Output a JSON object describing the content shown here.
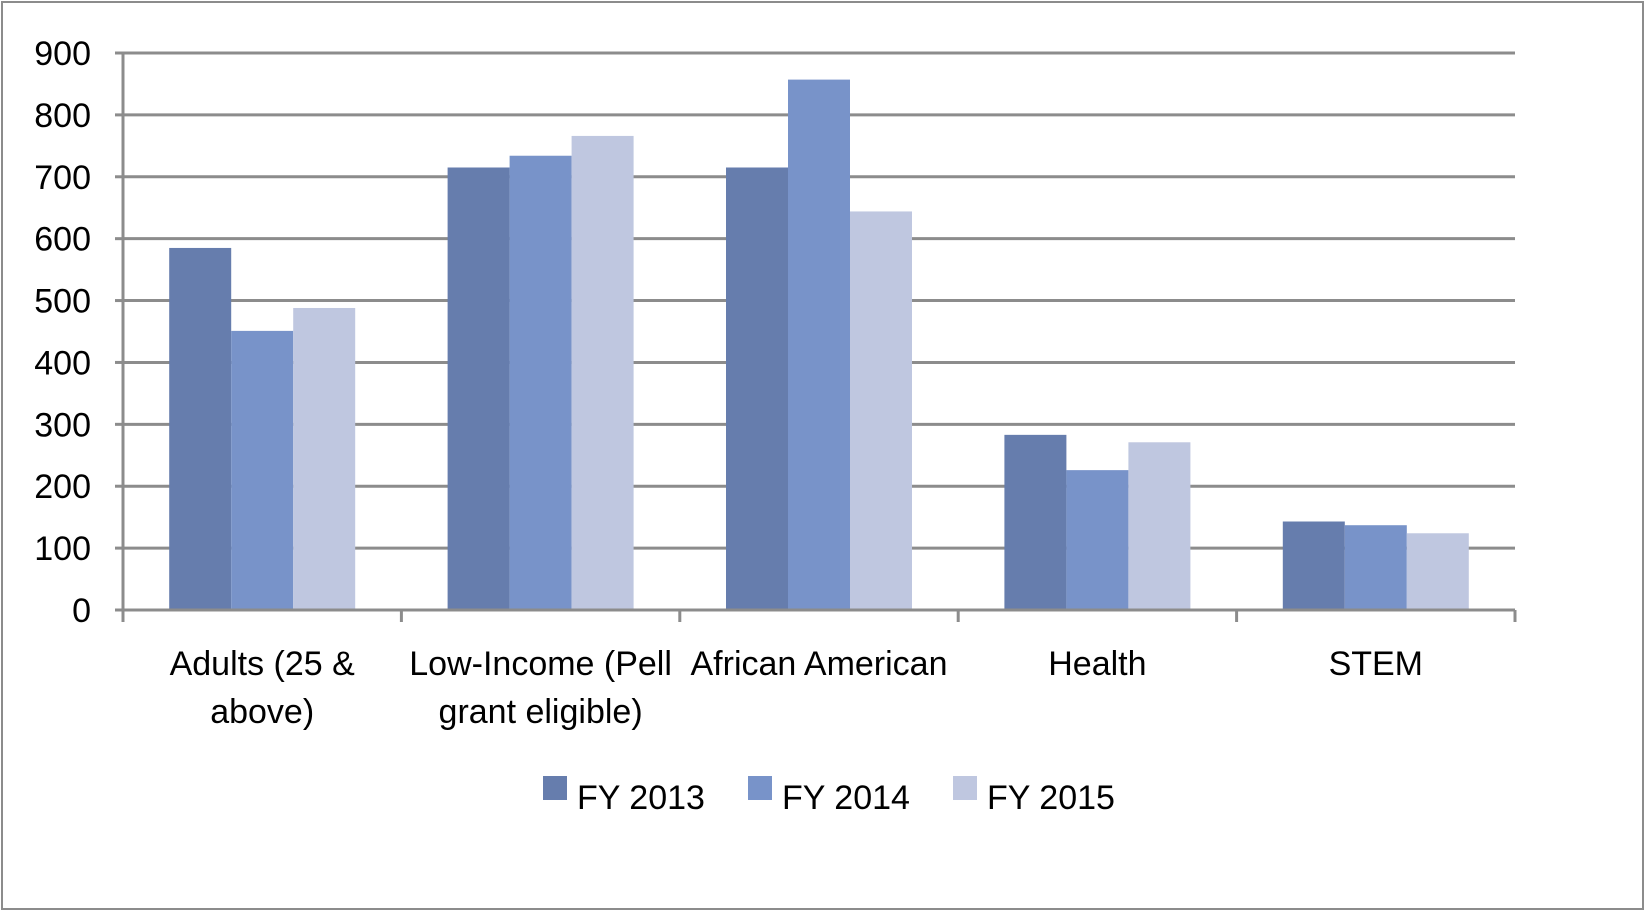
{
  "chart_data": {
    "type": "bar",
    "title": "",
    "xlabel": "",
    "ylabel": "",
    "ylim": [
      0,
      900
    ],
    "yticks": [
      0,
      100,
      200,
      300,
      400,
      500,
      600,
      700,
      800,
      900
    ],
    "grid": true,
    "legend_position": "bottom",
    "categories": [
      [
        "Adults (25 &",
        "above)"
      ],
      [
        "Low-Income (Pell",
        "grant eligible)"
      ],
      [
        "African American"
      ],
      [
        "Health"
      ],
      [
        "STEM"
      ]
    ],
    "series": [
      {
        "name": "FY 2013",
        "color": "#667dad",
        "values": [
          585,
          715,
          715,
          283,
          143
        ]
      },
      {
        "name": "FY 2014",
        "color": "#7893c9",
        "values": [
          451,
          734,
          857,
          226,
          137
        ]
      },
      {
        "name": "FY 2015",
        "color": "#bfc7e0",
        "values": [
          488,
          766,
          644,
          271,
          124
        ]
      }
    ]
  }
}
